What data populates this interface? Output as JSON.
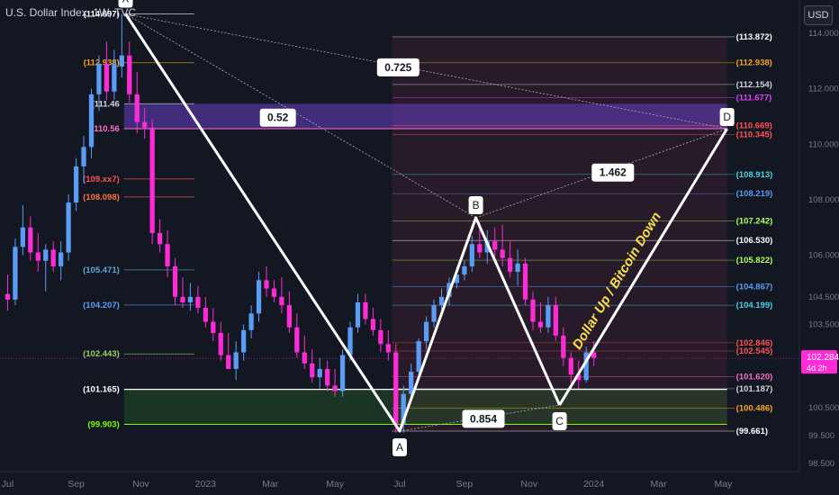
{
  "chart_data": {
    "type": "candlestick",
    "title": "U.S. Dollar Index, 1W, TVC",
    "currency_button": "USD",
    "ylim": [
      98.2,
      115.2
    ],
    "y_ticks": [
      {
        "value": 114.0,
        "label": "114.000"
      },
      {
        "value": 112.0,
        "label": "112.000"
      },
      {
        "value": 110.0,
        "label": "110.000"
      },
      {
        "value": 108.0,
        "label": "108.000"
      },
      {
        "value": 106.0,
        "label": "106.000"
      },
      {
        "value": 104.5,
        "label": "104.500"
      },
      {
        "value": 103.5,
        "label": "103.500"
      },
      {
        "value": 100.5,
        "label": "100.500"
      },
      {
        "value": 99.5,
        "label": "99.500"
      },
      {
        "value": 98.5,
        "label": "98.500"
      }
    ],
    "x_ticks": [
      {
        "label": "Jul",
        "week": 0
      },
      {
        "label": "Sep",
        "week": 9
      },
      {
        "label": "Nov",
        "week": 17.5
      },
      {
        "label": "2023",
        "week": 26
      },
      {
        "label": "Mar",
        "week": 34.5
      },
      {
        "label": "May",
        "week": 43
      },
      {
        "label": "Jul",
        "week": 51.5
      },
      {
        "label": "Sep",
        "week": 60
      },
      {
        "label": "Nov",
        "week": 68.5
      },
      {
        "label": "2024",
        "week": 77
      },
      {
        "label": "Mar",
        "week": 85.5
      },
      {
        "label": "May",
        "week": 94
      }
    ],
    "x_range": [
      -1,
      104
    ],
    "candles": [
      {
        "o": 104.6,
        "h": 105.3,
        "l": 104.0,
        "c": 104.4
      },
      {
        "o": 104.4,
        "h": 106.6,
        "l": 104.2,
        "c": 106.3
      },
      {
        "o": 106.3,
        "h": 107.8,
        "l": 106.0,
        "c": 107.0
      },
      {
        "o": 107.0,
        "h": 107.4,
        "l": 105.8,
        "c": 106.1
      },
      {
        "o": 106.1,
        "h": 106.8,
        "l": 105.4,
        "c": 105.8
      },
      {
        "o": 105.8,
        "h": 106.4,
        "l": 104.7,
        "c": 106.2
      },
      {
        "o": 106.2,
        "h": 106.5,
        "l": 105.4,
        "c": 105.6
      },
      {
        "o": 105.6,
        "h": 106.5,
        "l": 105.1,
        "c": 106.1
      },
      {
        "o": 106.1,
        "h": 108.2,
        "l": 105.8,
        "c": 107.9
      },
      {
        "o": 107.9,
        "h": 109.5,
        "l": 107.6,
        "c": 109.2
      },
      {
        "o": 109.2,
        "h": 110.3,
        "l": 108.6,
        "c": 109.9
      },
      {
        "o": 109.9,
        "h": 112.0,
        "l": 109.5,
        "c": 111.8
      },
      {
        "o": 111.8,
        "h": 113.2,
        "l": 111.2,
        "c": 112.9
      },
      {
        "o": 112.9,
        "h": 113.7,
        "l": 111.6,
        "c": 111.9
      },
      {
        "o": 111.9,
        "h": 113.4,
        "l": 111.6,
        "c": 112.9
      },
      {
        "o": 112.8,
        "h": 114.7,
        "l": 112.4,
        "c": 113.2
      },
      {
        "o": 113.2,
        "h": 113.7,
        "l": 111.5,
        "c": 111.8
      },
      {
        "o": 111.8,
        "h": 112.6,
        "l": 110.4,
        "c": 110.8
      },
      {
        "o": 110.8,
        "h": 111.3,
        "l": 110.2,
        "c": 110.6
      },
      {
        "o": 110.6,
        "h": 110.9,
        "l": 106.4,
        "c": 106.8
      },
      {
        "o": 106.8,
        "h": 107.3,
        "l": 106.1,
        "c": 106.4
      },
      {
        "o": 106.4,
        "h": 106.9,
        "l": 105.2,
        "c": 105.6
      },
      {
        "o": 105.6,
        "h": 105.9,
        "l": 104.2,
        "c": 104.5
      },
      {
        "o": 104.5,
        "h": 105.2,
        "l": 104.1,
        "c": 104.3
      },
      {
        "o": 104.3,
        "h": 105.0,
        "l": 104.0,
        "c": 104.5
      },
      {
        "o": 104.5,
        "h": 104.9,
        "l": 103.9,
        "c": 104.1
      },
      {
        "o": 104.1,
        "h": 104.5,
        "l": 103.4,
        "c": 103.6
      },
      {
        "o": 103.6,
        "h": 104.1,
        "l": 102.9,
        "c": 103.2
      },
      {
        "o": 103.2,
        "h": 103.6,
        "l": 102.2,
        "c": 102.4
      },
      {
        "o": 102.4,
        "h": 103.2,
        "l": 101.9,
        "c": 101.9
      },
      {
        "o": 101.9,
        "h": 102.9,
        "l": 101.5,
        "c": 102.5
      },
      {
        "o": 102.5,
        "h": 103.5,
        "l": 102.2,
        "c": 103.3
      },
      {
        "o": 103.3,
        "h": 104.2,
        "l": 103.0,
        "c": 103.9
      },
      {
        "o": 103.9,
        "h": 105.4,
        "l": 103.6,
        "c": 105.1
      },
      {
        "o": 105.1,
        "h": 105.6,
        "l": 104.5,
        "c": 104.8
      },
      {
        "o": 104.8,
        "h": 105.1,
        "l": 104.3,
        "c": 104.5
      },
      {
        "o": 104.5,
        "h": 105.2,
        "l": 103.9,
        "c": 104.2
      },
      {
        "o": 104.2,
        "h": 104.7,
        "l": 103.2,
        "c": 103.4
      },
      {
        "o": 103.4,
        "h": 103.9,
        "l": 102.3,
        "c": 102.5
      },
      {
        "o": 102.5,
        "h": 103.1,
        "l": 101.9,
        "c": 102.1
      },
      {
        "o": 102.1,
        "h": 102.6,
        "l": 101.4,
        "c": 101.6
      },
      {
        "o": 101.6,
        "h": 102.3,
        "l": 101.2,
        "c": 101.9
      },
      {
        "o": 101.9,
        "h": 102.2,
        "l": 101.1,
        "c": 101.3
      },
      {
        "o": 101.3,
        "h": 101.9,
        "l": 100.9,
        "c": 101.1
      },
      {
        "o": 101.1,
        "h": 102.6,
        "l": 100.9,
        "c": 102.4
      },
      {
        "o": 102.4,
        "h": 103.6,
        "l": 102.2,
        "c": 103.4
      },
      {
        "o": 103.4,
        "h": 104.6,
        "l": 103.2,
        "c": 104.3
      },
      {
        "o": 104.3,
        "h": 104.6,
        "l": 103.5,
        "c": 103.7
      },
      {
        "o": 103.7,
        "h": 104.1,
        "l": 103.1,
        "c": 103.3
      },
      {
        "o": 103.3,
        "h": 103.7,
        "l": 102.5,
        "c": 102.8
      },
      {
        "o": 102.8,
        "h": 103.3,
        "l": 102.2,
        "c": 102.5
      },
      {
        "o": 102.5,
        "h": 102.8,
        "l": 99.6,
        "c": 99.9
      },
      {
        "o": 99.9,
        "h": 101.3,
        "l": 99.6,
        "c": 101.0
      },
      {
        "o": 101.0,
        "h": 102.1,
        "l": 100.8,
        "c": 101.8
      },
      {
        "o": 101.8,
        "h": 103.0,
        "l": 101.6,
        "c": 102.9
      },
      {
        "o": 102.9,
        "h": 103.8,
        "l": 102.6,
        "c": 103.6
      },
      {
        "o": 103.6,
        "h": 104.4,
        "l": 103.4,
        "c": 104.2
      },
      {
        "o": 104.2,
        "h": 104.8,
        "l": 104.0,
        "c": 104.5
      },
      {
        "o": 104.5,
        "h": 105.2,
        "l": 104.2,
        "c": 105.0
      },
      {
        "o": 105.0,
        "h": 105.6,
        "l": 104.8,
        "c": 105.3
      },
      {
        "o": 105.3,
        "h": 105.8,
        "l": 105.1,
        "c": 105.6
      },
      {
        "o": 105.6,
        "h": 106.7,
        "l": 105.4,
        "c": 106.4
      },
      {
        "o": 106.4,
        "h": 107.2,
        "l": 105.9,
        "c": 106.1
      },
      {
        "o": 106.1,
        "h": 106.9,
        "l": 105.7,
        "c": 106.5
      },
      {
        "o": 106.5,
        "h": 107.0,
        "l": 105.9,
        "c": 106.2
      },
      {
        "o": 106.2,
        "h": 107.1,
        "l": 105.6,
        "c": 105.9
      },
      {
        "o": 105.9,
        "h": 106.5,
        "l": 105.2,
        "c": 105.4
      },
      {
        "o": 105.4,
        "h": 106.2,
        "l": 104.9,
        "c": 105.7
      },
      {
        "o": 105.7,
        "h": 105.9,
        "l": 104.2,
        "c": 104.4
      },
      {
        "o": 104.4,
        "h": 104.7,
        "l": 103.3,
        "c": 103.6
      },
      {
        "o": 103.6,
        "h": 104.3,
        "l": 103.2,
        "c": 103.4
      },
      {
        "o": 103.4,
        "h": 104.5,
        "l": 103.2,
        "c": 104.2
      },
      {
        "o": 104.2,
        "h": 104.5,
        "l": 102.9,
        "c": 103.1
      },
      {
        "o": 103.1,
        "h": 103.4,
        "l": 102.0,
        "c": 102.3
      },
      {
        "o": 102.3,
        "h": 102.5,
        "l": 101.4,
        "c": 101.7
      },
      {
        "o": 101.7,
        "h": 102.2,
        "l": 101.2,
        "c": 101.5
      },
      {
        "o": 101.5,
        "h": 102.7,
        "l": 101.4,
        "c": 102.5
      },
      {
        "o": 102.5,
        "h": 102.9,
        "l": 102.0,
        "c": 102.3
      }
    ],
    "colors": {
      "up": "#5b9cf6",
      "down": "#ff2bd6",
      "background": "#131722",
      "price_label": "#ff2bd6"
    },
    "pattern_points": [
      {
        "label": "X",
        "week": 15.5,
        "value": 114.697
      },
      {
        "label": "A",
        "week": 51.5,
        "value": 99.661
      },
      {
        "label": "B",
        "week": 61.5,
        "value": 107.35
      },
      {
        "label": "C",
        "week": 72.5,
        "value": 100.6
      },
      {
        "label": "D",
        "week": 94.5,
        "value": 110.56
      }
    ],
    "ratios": [
      {
        "label": "0.52",
        "week": 35.5,
        "value": 110.96
      },
      {
        "label": "0.725",
        "week": 51.3,
        "value": 112.77
      },
      {
        "label": "1.462",
        "week": 79.5,
        "value": 108.98
      },
      {
        "label": "0.854",
        "week": 62.5,
        "value": 100.1
      }
    ],
    "annotation": "Dollar Up / Bitcoin Down",
    "left_fib_levels": [
      {
        "label": "(114.697)",
        "value": 114.697,
        "color": "#ffffff"
      },
      {
        "label": "(112.938)",
        "value": 112.938,
        "color": "#f5a623"
      },
      {
        "label": "(111.46",
        "value": 111.46,
        "color": "#d1d4dc"
      },
      {
        "label": "(110.56",
        "value": 110.56,
        "color": "#ff6ec7"
      },
      {
        "label": "(109.xx7)",
        "value": 108.75,
        "color": "#ff5252"
      },
      {
        "label": "(108.098)",
        "value": 108.098,
        "color": "#ff7043"
      },
      {
        "label": "(105.471)",
        "value": 105.471,
        "color": "#5fa8d3"
      },
      {
        "label": "(104.207)",
        "value": 104.207,
        "color": "#5b9cf6"
      },
      {
        "label": "(102.443)",
        "value": 102.443,
        "color": "#9ccc65"
      },
      {
        "label": "(101.165)",
        "value": 101.165,
        "color": "#ffffff"
      },
      {
        "label": "(99.903)",
        "value": 99.903,
        "color": "#7cfc00"
      }
    ],
    "right_fib_levels": [
      {
        "label": "(113.872)",
        "value": 113.872,
        "color": "#ffffff"
      },
      {
        "label": "(112.938)",
        "value": 112.938,
        "color": "#f5a623"
      },
      {
        "label": "(112.154)",
        "value": 112.154,
        "color": "#d1d4dc"
      },
      {
        "label": "(111.677)",
        "value": 111.677,
        "color": "#e040fb"
      },
      {
        "label": "(110.669)",
        "value": 110.669,
        "color": "#ff5252"
      },
      {
        "label": "(110.345)",
        "value": 110.345,
        "color": "#ff5252"
      },
      {
        "label": "(108.913)",
        "value": 108.913,
        "color": "#4dd0e1"
      },
      {
        "label": "(108.219)",
        "value": 108.219,
        "color": "#5b9cf6"
      },
      {
        "label": "(107.242)",
        "value": 107.242,
        "color": "#b2ff59"
      },
      {
        "label": "(106.530)",
        "value": 106.53,
        "color": "#ffffff"
      },
      {
        "label": "(105.822)",
        "value": 105.822,
        "color": "#b2ff59"
      },
      {
        "label": "(104.867)",
        "value": 104.867,
        "color": "#5b9cf6"
      },
      {
        "label": "(104.199)",
        "value": 104.199,
        "color": "#4dd0e1"
      },
      {
        "label": "(102.846)",
        "value": 102.846,
        "color": "#ff5252"
      },
      {
        "label": "(102.545)",
        "value": 102.545,
        "color": "#ff5252"
      },
      {
        "label": "(101.620)",
        "value": 101.62,
        "color": "#ff6ec7"
      },
      {
        "label": "(101.187)",
        "value": 101.187,
        "color": "#d1d4dc"
      },
      {
        "label": "(100.486)",
        "value": 100.486,
        "color": "#f5a623"
      },
      {
        "label": "(99.661)",
        "value": 99.661,
        "color": "#ffffff"
      }
    ],
    "current_price": {
      "value": 102.284,
      "label": "102.284",
      "countdown": "4d 2h"
    }
  }
}
